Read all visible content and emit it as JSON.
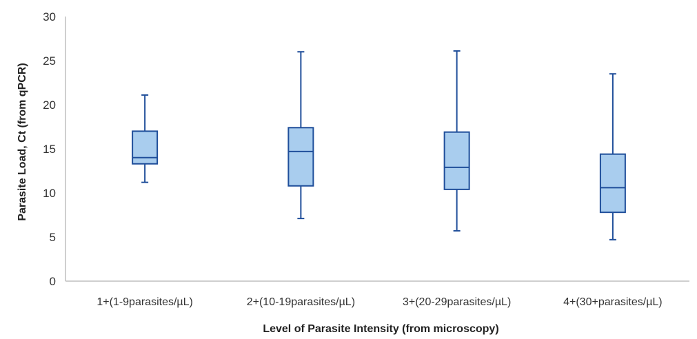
{
  "chart_data": {
    "type": "box",
    "xlabel": "Level of Parasite Intensity (from microscopy)",
    "ylabel": "Parasite Load, Ct  (from qPCR)",
    "ylim": [
      0,
      30
    ],
    "yticks": [
      "0",
      "5",
      "10",
      "15",
      "20",
      "25",
      "30"
    ],
    "grid": false,
    "categories": [
      "1+(1-9parasites/µL)",
      "2+(10-19parasites/µL)",
      "3+(20-29parasites/µL)",
      "4+(30+parasites/µL)"
    ],
    "boxes": [
      {
        "min": 11.2,
        "q1": 13.3,
        "median": 14.0,
        "q3": 17.0,
        "max": 21.1
      },
      {
        "min": 7.1,
        "q1": 10.8,
        "median": 14.7,
        "q3": 17.4,
        "max": 26.0
      },
      {
        "min": 5.7,
        "q1": 10.4,
        "median": 12.9,
        "q3": 16.9,
        "max": 26.1
      },
      {
        "min": 4.7,
        "q1": 7.8,
        "median": 10.6,
        "q3": 14.4,
        "max": 23.5
      }
    ],
    "colors": {
      "box_fill": "#a9cdee",
      "box_stroke": "#1f4e9a",
      "whisker": "#1f4e9a",
      "axis": "#bfbfbf"
    }
  }
}
